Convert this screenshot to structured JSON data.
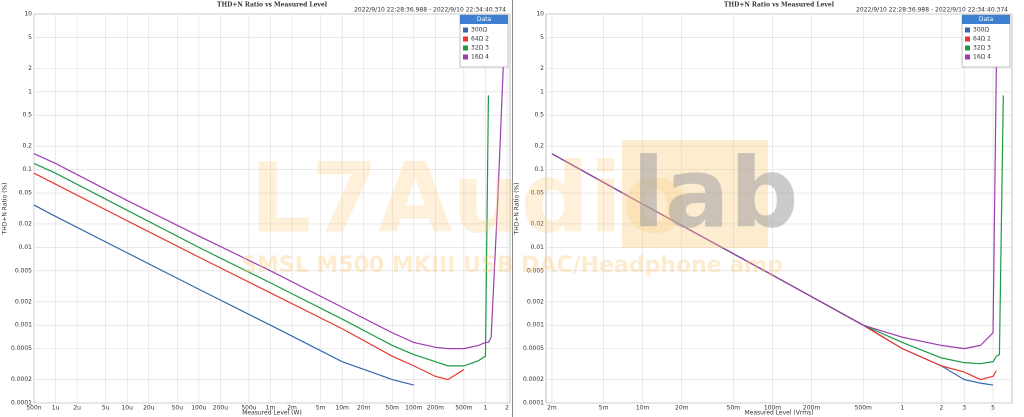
{
  "chart_data": [
    {
      "type": "line",
      "title": "THD+N Ratio vs Measured Level",
      "subtitle": "2022/9/10 22:28:36.988 - 2022/9/10 22:34:40.374",
      "x_label": "Measured Level (W)",
      "y_label": "THD+N Ratio (%)",
      "legend_title": "Data",
      "legend": "upper right",
      "x_log": true,
      "y_log": true,
      "grid": true,
      "x": [
        5e-07,
        1e-06,
        1e-05,
        0.0001,
        0.001,
        0.01,
        0.05,
        0.1,
        0.2,
        0.3,
        0.5,
        0.8,
        1.0,
        1.1,
        1.2,
        1.5,
        1.8,
        2.0
      ],
      "series": [
        {
          "name": "300Ω",
          "color": "#3a66b0",
          "values": [
            0.035,
            0.025,
            0.0085,
            0.0029,
            0.001,
            0.00034,
            0.0002,
            0.00017,
            null,
            null,
            null,
            null,
            null,
            null,
            null,
            null,
            null,
            null
          ]
        },
        {
          "name": "64Ω 2",
          "color": "#e8392f",
          "values": [
            0.09,
            0.065,
            0.022,
            0.0075,
            0.0026,
            0.0009,
            0.0004,
            0.0003,
            0.00022,
            0.0002,
            0.00027,
            null,
            null,
            null,
            null,
            null,
            null,
            null
          ]
        },
        {
          "name": "32Ω 3",
          "color": "#1e9a46",
          "values": [
            0.12,
            0.09,
            0.03,
            0.01,
            0.0035,
            0.0012,
            0.00055,
            0.00042,
            0.00034,
            0.0003,
            0.0003,
            0.00035,
            0.0004,
            0.9,
            null,
            null,
            null,
            null
          ]
        },
        {
          "name": "16Ω 4",
          "color": "#9b3fb0",
          "values": [
            0.16,
            0.12,
            0.04,
            0.014,
            0.005,
            0.0017,
            0.0008,
            0.0006,
            0.00052,
            0.0005,
            0.0005,
            0.00055,
            0.0006,
            0.0006,
            0.0007,
            0.05,
            3,
            8
          ]
        }
      ],
      "xlim": [
        5e-07,
        2.2
      ],
      "ylim": [
        0.0001,
        10
      ],
      "xticks": [
        {
          "value": 5e-07,
          "label": "500n"
        },
        {
          "value": 1e-06,
          "label": "1u"
        },
        {
          "value": 2e-06,
          "label": "2u"
        },
        {
          "value": 5e-06,
          "label": "5u"
        },
        {
          "value": 1e-05,
          "label": "10u"
        },
        {
          "value": 2e-05,
          "label": "20u"
        },
        {
          "value": 5e-05,
          "label": "50u"
        },
        {
          "value": 0.0001,
          "label": "100u"
        },
        {
          "value": 0.0002,
          "label": "200u"
        },
        {
          "value": 0.0005,
          "label": "500u"
        },
        {
          "value": 0.001,
          "label": "1m"
        },
        {
          "value": 0.002,
          "label": "2m"
        },
        {
          "value": 0.005,
          "label": "5m"
        },
        {
          "value": 0.01,
          "label": "10m"
        },
        {
          "value": 0.02,
          "label": "20m"
        },
        {
          "value": 0.05,
          "label": "50m"
        },
        {
          "value": 0.1,
          "label": "100m"
        },
        {
          "value": 0.2,
          "label": "200m"
        },
        {
          "value": 0.5,
          "label": "500m"
        },
        1,
        2
      ],
      "yticks": [
        10,
        5,
        2,
        1,
        0.5,
        0.2,
        0.1,
        0.05,
        0.02,
        0.01,
        0.005,
        0.002,
        0.001,
        0.0005,
        0.0002,
        0.0001
      ]
    },
    {
      "type": "line",
      "title": "THD+N Ratio vs Measured Level",
      "subtitle": "2022/9/10 22:28:36.988 - 2022/9/10 22:34:40.374",
      "x_label": "Measured Level (Vrms)",
      "y_label": "THD+N Ratio (%)",
      "legend_title": "Data",
      "legend": "upper right",
      "x_log": true,
      "y_log": true,
      "grid": true,
      "x": [
        0.002,
        0.01,
        0.1,
        0.5,
        1,
        2,
        3,
        4,
        5,
        5.3,
        5.6,
        6
      ],
      "series": [
        {
          "name": "300Ω",
          "color": "#3a66b0",
          "values": [
            0.16,
            0.036,
            0.0044,
            0.001,
            0.0005,
            0.0003,
            0.0002,
            0.00018,
            0.00017,
            null,
            null,
            null
          ]
        },
        {
          "name": "64Ω 2",
          "color": "#e8392f",
          "values": [
            0.16,
            0.036,
            0.0044,
            0.001,
            0.0005,
            0.0003,
            0.00025,
            0.0002,
            0.00022,
            0.00026,
            null,
            null
          ]
        },
        {
          "name": "32Ω 3",
          "color": "#1e9a46",
          "values": [
            0.16,
            0.036,
            0.0044,
            0.001,
            0.0006,
            0.00038,
            0.00033,
            0.00032,
            0.00034,
            0.0004,
            0.00042,
            0.9
          ]
        },
        {
          "name": "16Ω 4",
          "color": "#9b3fb0",
          "values": [
            0.16,
            0.036,
            0.0044,
            0.001,
            0.0007,
            0.00055,
            0.0005,
            0.00055,
            0.0008,
            2,
            8,
            null
          ]
        }
      ],
      "xlim": [
        0.0018,
        7
      ],
      "ylim": [
        0.0001,
        10
      ],
      "xticks": [
        {
          "value": 0.002,
          "label": "2m"
        },
        {
          "value": 0.005,
          "label": "5m"
        },
        {
          "value": 0.01,
          "label": "10m"
        },
        {
          "value": 0.02,
          "label": "20m"
        },
        {
          "value": 0.05,
          "label": "50m"
        },
        {
          "value": 0.1,
          "label": "100m"
        },
        {
          "value": 0.2,
          "label": "200m"
        },
        {
          "value": 0.5,
          "label": "500m"
        },
        1,
        2,
        3,
        5
      ],
      "yticks": [
        10,
        5,
        2,
        1,
        0.5,
        0.2,
        0.1,
        0.05,
        0.02,
        0.01,
        0.005,
        0.002,
        0.001,
        0.0005,
        0.0002,
        0.0001
      ]
    }
  ],
  "watermark": {
    "brand": "L7Audio",
    "brand_suffix": "lab",
    "subtitle": "SMSL M500 MKIII USB DAC/Headphone amp"
  }
}
